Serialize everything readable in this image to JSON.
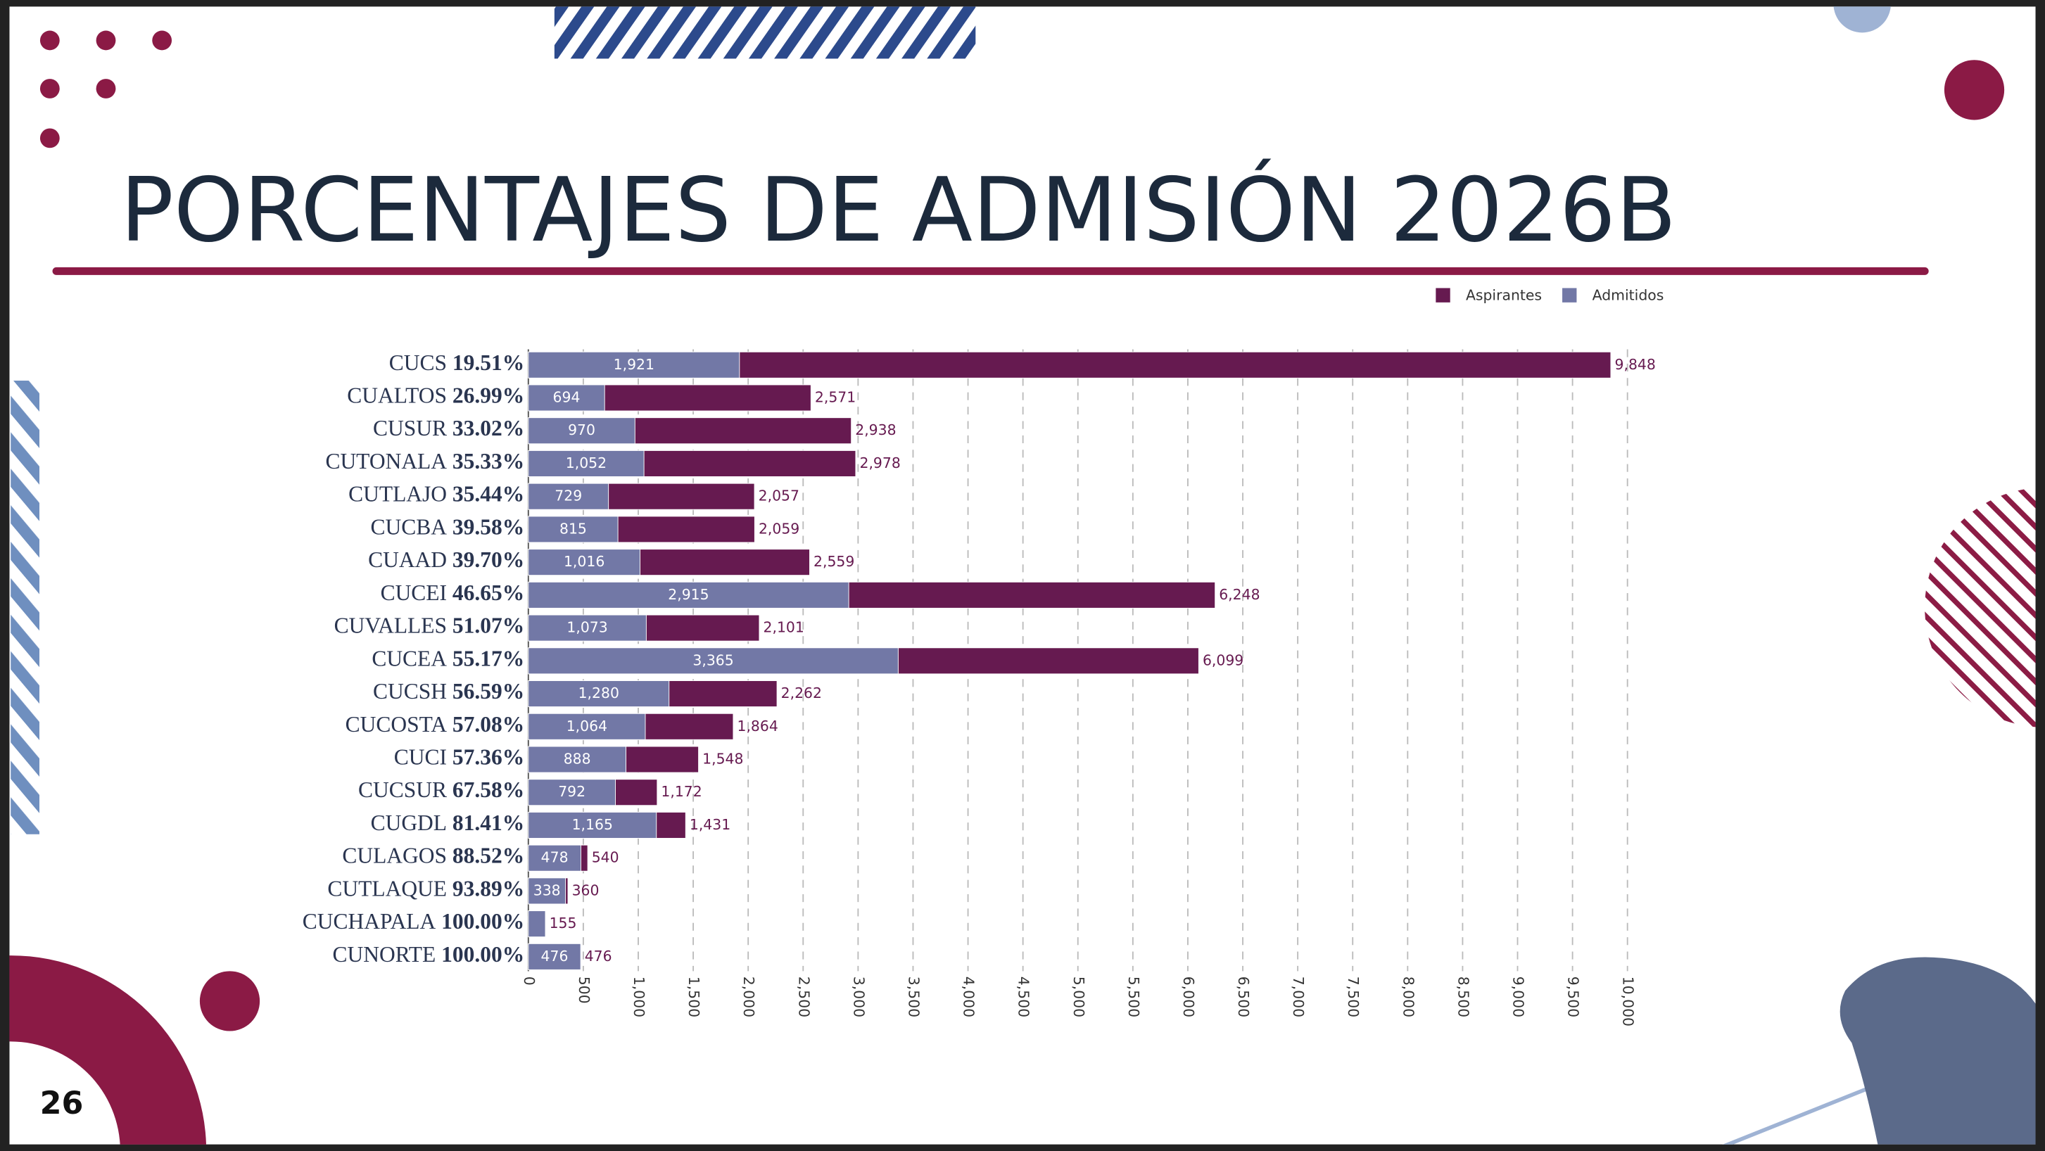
{
  "slide": {
    "page_number": "26"
  },
  "chart_data": {
    "type": "bar",
    "orientation": "horizontal",
    "barmode": "overlay",
    "title": "PORCENTAJES DE ADMISIÓN 2026B",
    "categories": [
      "CUCS",
      "CUALTOS",
      "CUSUR",
      "CUTONALA",
      "CUTLAJO",
      "CUCBA",
      "CUAAD",
      "CUCEI",
      "CUVALLES",
      "CUCEA",
      "CUCSH",
      "CUCOSTA",
      "CUCI",
      "CUCSUR",
      "CUGDL",
      "CULAGOS",
      "CUTLAQUE",
      "CUCHAPALA",
      "CUNORTE"
    ],
    "category_percents": [
      "19.51%",
      "26.99%",
      "33.02%",
      "35.33%",
      "35.44%",
      "39.58%",
      "39.70%",
      "46.65%",
      "51.07%",
      "55.17%",
      "56.59%",
      "57.08%",
      "57.36%",
      "67.58%",
      "81.41%",
      "88.52%",
      "93.89%",
      "100.00%",
      "100.00%"
    ],
    "series": [
      {
        "name": "Aspirantes",
        "color": "#661a50",
        "values": [
          9848,
          2571,
          2938,
          2978,
          2057,
          2059,
          2559,
          6248,
          2101,
          6099,
          2262,
          1864,
          1548,
          1172,
          1431,
          540,
          360,
          155,
          476
        ],
        "value_labels": [
          "9,848",
          "2,571",
          "2,938",
          "2,978",
          "2,057",
          "2,059",
          "2,559",
          "6,248",
          "2,101",
          "6,099",
          "2,262",
          "1,864",
          "1,548",
          "1,172",
          "1,431",
          "540",
          "360",
          "155",
          "476"
        ]
      },
      {
        "name": "Admitidos",
        "color": "#7278a6",
        "values": [
          1921,
          694,
          970,
          1052,
          729,
          815,
          1016,
          2915,
          1073,
          3365,
          1280,
          1064,
          888,
          792,
          1165,
          478,
          338,
          155,
          476
        ],
        "value_labels": [
          "1,921",
          "694",
          "970",
          "1,052",
          "729",
          "815",
          "1,016",
          "2,915",
          "1,073",
          "3,365",
          "1,280",
          "1,064",
          "888",
          "792",
          "1,165",
          "478",
          "338",
          null,
          "476"
        ]
      }
    ],
    "xlim": [
      0,
      10000
    ],
    "xticks": [
      0,
      500,
      {
        "value": 1000,
        "label": "1,000"
      },
      {
        "value": 1500,
        "label": "1,500"
      },
      {
        "value": 2000,
        "label": "2,000"
      },
      {
        "value": 2500,
        "label": "2,500"
      },
      {
        "value": 3000,
        "label": "3,000"
      },
      {
        "value": 3500,
        "label": "3,500"
      },
      {
        "value": 4000,
        "label": "4,000"
      },
      {
        "value": 4500,
        "label": "4,500"
      },
      {
        "value": 5000,
        "label": "5,000"
      },
      {
        "value": 5500,
        "label": "5,500"
      },
      {
        "value": 6000,
        "label": "6,000"
      },
      {
        "value": 6500,
        "label": "6,500"
      },
      {
        "value": 7000,
        "label": "7,000"
      },
      {
        "value": 7500,
        "label": "7,500"
      },
      {
        "value": 8000,
        "label": "8,000"
      },
      {
        "value": 8500,
        "label": "8,500"
      },
      {
        "value": 9000,
        "label": "9,000"
      },
      {
        "value": 9500,
        "label": "9,500"
      },
      {
        "value": 10000,
        "label": "10,000"
      }
    ],
    "grid": true,
    "legend": "top-right"
  }
}
